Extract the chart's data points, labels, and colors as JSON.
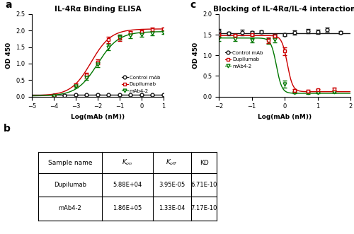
{
  "panel_a_title": "IL-4Rα Binding ELISA",
  "panel_c_title": "Blocking of IL-4Rα/IL-4 interaction",
  "ylabel_a": "OD 450",
  "ylabel_c": "OD 450",
  "xlabel_a": "Log(mAb (nM))",
  "xlabel_c": "Log(mAb (nM))",
  "xlim_a": [
    -5,
    1
  ],
  "ylim_a": [
    0,
    2.5
  ],
  "xticks_a": [
    -5,
    -4,
    -3,
    -2,
    -1,
    0,
    1
  ],
  "yticks_a": [
    0.0,
    0.5,
    1.0,
    1.5,
    2.0,
    2.5
  ],
  "xlim_c": [
    -2,
    2
  ],
  "ylim_c": [
    0.0,
    2.0
  ],
  "xticks_c": [
    -2,
    -1,
    0,
    1,
    2
  ],
  "yticks_c": [
    0.0,
    0.5,
    1.0,
    1.5,
    2.0
  ],
  "colors": {
    "control": "#1a1a1a",
    "dupilumab": "#cc0000",
    "mab42": "#007700"
  },
  "table_rows": [
    [
      "Dupilumab",
      "5.88E+04",
      "3.95E-05",
      "6.71E-10"
    ],
    [
      "mAb4-2",
      "1.86E+05",
      "1.33E-04",
      "7.17E-10"
    ]
  ]
}
